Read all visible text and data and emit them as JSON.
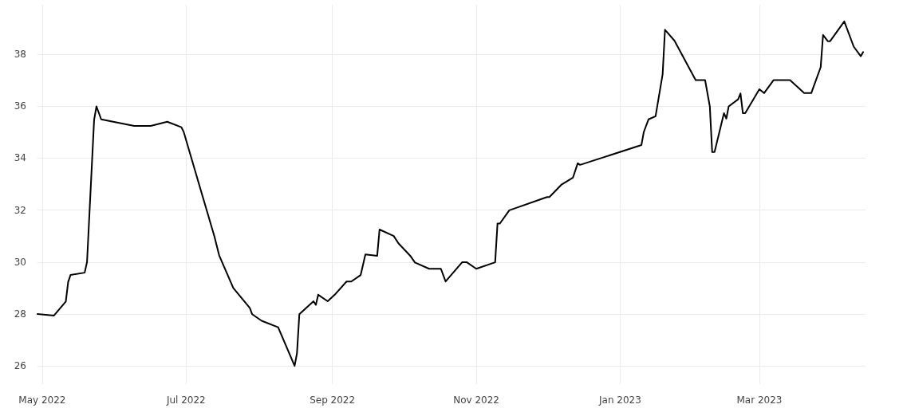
{
  "chart_data": {
    "type": "line",
    "x": [
      "2022-04-29",
      "2022-05-06",
      "2022-05-11",
      "2022-05-12",
      "2022-05-13",
      "2022-05-19",
      "2022-05-20",
      "2022-05-23",
      "2022-05-24",
      "2022-05-26",
      "2022-06-09",
      "2022-06-16",
      "2022-06-23",
      "2022-06-29",
      "2022-06-30",
      "2022-07-13",
      "2022-07-15",
      "2022-07-21",
      "2022-07-28",
      "2022-07-29",
      "2022-08-02",
      "2022-08-09",
      "2022-08-16",
      "2022-08-17",
      "2022-08-18",
      "2022-08-24",
      "2022-08-25",
      "2022-08-26",
      "2022-08-30",
      "2022-09-02",
      "2022-09-07",
      "2022-09-09",
      "2022-09-13",
      "2022-09-15",
      "2022-09-20",
      "2022-09-21",
      "2022-09-27",
      "2022-09-29",
      "2022-10-04",
      "2022-10-06",
      "2022-10-12",
      "2022-10-17",
      "2022-10-19",
      "2022-10-26",
      "2022-10-28",
      "2022-11-01",
      "2022-11-09",
      "2022-11-10",
      "2022-11-11",
      "2022-11-15",
      "2022-12-01",
      "2022-12-02",
      "2022-12-07",
      "2022-12-12",
      "2022-12-14",
      "2022-12-15",
      "2023-01-10",
      "2023-01-11",
      "2023-01-13",
      "2023-01-16",
      "2023-01-19",
      "2023-01-20",
      "2023-01-24",
      "2023-02-02",
      "2023-02-06",
      "2023-02-08",
      "2023-02-09",
      "2023-02-10",
      "2023-02-14",
      "2023-02-15",
      "2023-02-16",
      "2023-02-20",
      "2023-02-21",
      "2023-02-22",
      "2023-02-23",
      "2023-03-01",
      "2023-03-03",
      "2023-03-07",
      "2023-03-14",
      "2023-03-20",
      "2023-03-23",
      "2023-03-27",
      "2023-03-28",
      "2023-03-30",
      "2023-03-31",
      "2023-04-06",
      "2023-04-10",
      "2023-04-13",
      "2023-04-14"
    ],
    "series": [
      {
        "color": "#000000",
        "values": [
          28.0,
          27.94,
          28.48,
          29.23,
          29.5,
          29.59,
          30.0,
          35.47,
          35.99,
          35.49,
          35.24,
          35.24,
          35.4,
          35.19,
          35.0,
          30.98,
          30.26,
          29.0,
          28.23,
          27.99,
          27.74,
          27.49,
          26.0,
          26.49,
          27.99,
          28.49,
          28.35,
          28.74,
          28.49,
          28.74,
          29.25,
          29.25,
          29.5,
          30.29,
          30.24,
          31.25,
          31.0,
          30.72,
          30.24,
          29.98,
          29.74,
          29.74,
          29.25,
          29.99,
          29.99,
          29.74,
          29.99,
          31.48,
          31.48,
          31.99,
          32.5,
          32.5,
          32.97,
          33.25,
          33.8,
          33.74,
          34.5,
          35.0,
          35.49,
          35.61,
          37.23,
          38.94,
          38.52,
          37.0,
          37.0,
          35.99,
          34.23,
          34.23,
          35.73,
          35.52,
          35.99,
          36.26,
          36.49,
          35.73,
          35.73,
          36.65,
          36.5,
          37.0,
          37.0,
          36.5,
          36.5,
          37.5,
          38.74,
          38.5,
          38.5,
          39.26,
          38.29,
          37.92,
          38.08
        ]
      }
    ],
    "xlim": [
      "2022-04-29",
      "2023-04-15"
    ],
    "xticks": [
      {
        "value": "2022-05-01",
        "label": "May 2022"
      },
      {
        "value": "2022-07-01",
        "label": "Jul 2022"
      },
      {
        "value": "2022-09-01",
        "label": "Sep 2022"
      },
      {
        "value": "2022-11-01",
        "label": "Nov 2022"
      },
      {
        "value": "2023-01-01",
        "label": "Jan 2023"
      },
      {
        "value": "2023-03-01",
        "label": "Mar 2023"
      }
    ],
    "ylim": [
      25.3,
      39.9
    ],
    "yticks": [
      26,
      28,
      30,
      32,
      34,
      36,
      38
    ],
    "grid": true,
    "marker": "none",
    "line_style": "solid"
  }
}
